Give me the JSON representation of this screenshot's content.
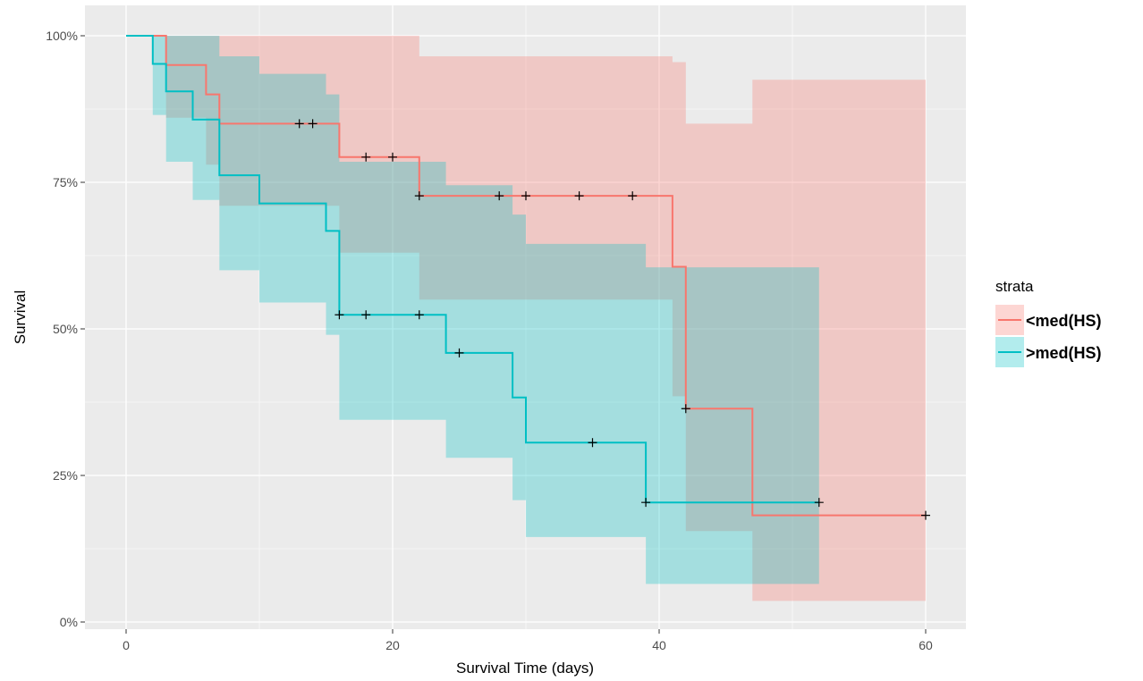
{
  "chart_data": {
    "type": "line",
    "subtype": "kaplan-meier survival curve with confidence bands",
    "xlabel": "Survival Time (days)",
    "ylabel": "Survival",
    "xlim": [
      0,
      62
    ],
    "ylim": [
      0,
      1
    ],
    "x_ticks": [
      0,
      20,
      40,
      60
    ],
    "x_tick_labels": [
      "0",
      "20",
      "40",
      "60"
    ],
    "y_ticks": [
      0,
      0.25,
      0.5,
      0.75,
      1.0
    ],
    "y_tick_labels": [
      "0%",
      "25%",
      "50%",
      "75%",
      "100%"
    ],
    "grid": true,
    "legend": {
      "title": "strata",
      "position": "right"
    },
    "series": [
      {
        "name": "<med(HS)",
        "color": "#f8766d",
        "band_color": "#f8766d",
        "steps": [
          [
            0,
            1.0
          ],
          [
            3,
            0.95
          ],
          [
            6,
            0.9
          ],
          [
            7,
            0.85
          ],
          [
            16,
            0.793
          ],
          [
            22,
            0.727
          ],
          [
            41,
            0.606
          ],
          [
            42,
            0.364
          ],
          [
            47,
            0.182
          ],
          [
            60,
            0.182
          ]
        ],
        "lower": [
          [
            0,
            1.0
          ],
          [
            3,
            0.86
          ],
          [
            6,
            0.78
          ],
          [
            7,
            0.71
          ],
          [
            16,
            0.63
          ],
          [
            22,
            0.55
          ],
          [
            41,
            0.385
          ],
          [
            42,
            0.155
          ],
          [
            47,
            0.036
          ],
          [
            60,
            0.036
          ]
        ],
        "upper": [
          [
            0,
            1.0
          ],
          [
            7,
            1.0
          ],
          [
            16,
            1.0
          ],
          [
            22,
            0.965
          ],
          [
            41,
            0.955
          ],
          [
            42,
            0.85
          ],
          [
            47,
            0.925
          ],
          [
            60,
            0.925
          ]
        ],
        "censored": [
          [
            13,
            0.85
          ],
          [
            14,
            0.85
          ],
          [
            18,
            0.793
          ],
          [
            20,
            0.793
          ],
          [
            22,
            0.727
          ],
          [
            28,
            0.727
          ],
          [
            30,
            0.727
          ],
          [
            34,
            0.727
          ],
          [
            38,
            0.727
          ],
          [
            42,
            0.364
          ],
          [
            60,
            0.182
          ]
        ]
      },
      {
        "name": ">med(HS)",
        "color": "#00bfc4",
        "band_color": "#00bfc4",
        "steps": [
          [
            0,
            1.0
          ],
          [
            2,
            0.952
          ],
          [
            3,
            0.905
          ],
          [
            5,
            0.857
          ],
          [
            7,
            0.762
          ],
          [
            10,
            0.714
          ],
          [
            15,
            0.667
          ],
          [
            16,
            0.524
          ],
          [
            24,
            0.459
          ],
          [
            29,
            0.383
          ],
          [
            30,
            0.306
          ],
          [
            39,
            0.204
          ],
          [
            52,
            0.204
          ]
        ],
        "lower": [
          [
            0,
            1.0
          ],
          [
            2,
            0.865
          ],
          [
            3,
            0.785
          ],
          [
            5,
            0.72
          ],
          [
            7,
            0.6
          ],
          [
            10,
            0.545
          ],
          [
            15,
            0.49
          ],
          [
            16,
            0.345
          ],
          [
            24,
            0.28
          ],
          [
            29,
            0.208
          ],
          [
            30,
            0.145
          ],
          [
            39,
            0.065
          ],
          [
            52,
            0.065
          ]
        ],
        "upper": [
          [
            0,
            1.0
          ],
          [
            7,
            1.0
          ],
          [
            7,
            0.965
          ],
          [
            10,
            0.935
          ],
          [
            15,
            0.9
          ],
          [
            16,
            0.785
          ],
          [
            24,
            0.745
          ],
          [
            29,
            0.695
          ],
          [
            30,
            0.645
          ],
          [
            39,
            0.605
          ],
          [
            52,
            0.605
          ]
        ],
        "censored": [
          [
            16,
            0.524
          ],
          [
            18,
            0.524
          ],
          [
            22,
            0.524
          ],
          [
            25,
            0.459
          ],
          [
            35,
            0.306
          ],
          [
            39,
            0.204
          ],
          [
            52,
            0.204
          ]
        ]
      }
    ]
  }
}
